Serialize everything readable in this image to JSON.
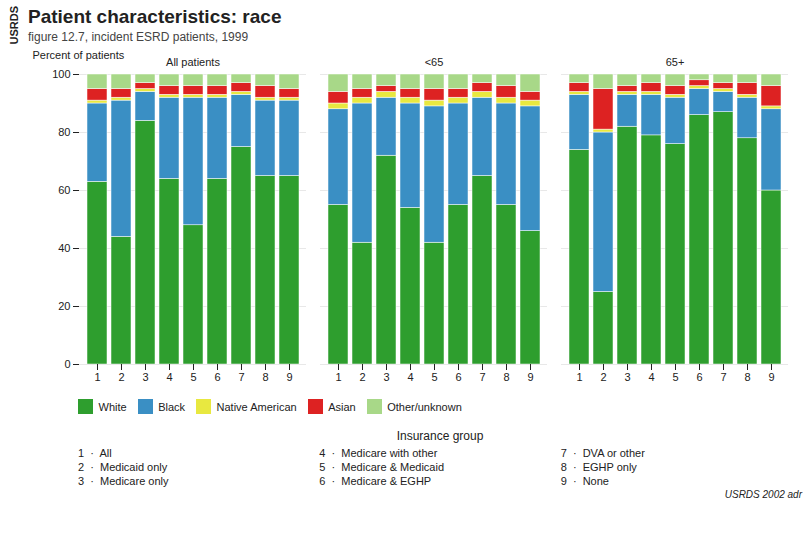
{
  "chart_data": {
    "type": "bar",
    "title": "Patient characteristics: race",
    "subtitle": "figure 12.7, incident ESRD patients, 1999",
    "xlabel": "Insurance group",
    "ylabel": "Percent of patients",
    "stacked": true,
    "grid": true,
    "legend": "bottom",
    "ylim": [
      0,
      100
    ],
    "yticks": [
      0,
      20,
      40,
      60,
      80,
      100
    ],
    "categories": [
      "1",
      "2",
      "3",
      "4",
      "5",
      "6",
      "7",
      "8",
      "9"
    ],
    "facets": [
      {
        "title": "All patients",
        "series": [
          {
            "name": "White",
            "color": "#2e9e2e",
            "values": [
              63,
              44,
              84,
              64,
              48,
              64,
              75,
              65,
              65
            ]
          },
          {
            "name": "Black",
            "color": "#3a8fc4",
            "values": [
              27,
              47,
              10,
              28,
              44,
              28,
              18,
              26,
              26
            ]
          },
          {
            "name": "Native American",
            "color": "#e8e840",
            "values": [
              1,
              1,
              1,
              1,
              1,
              1,
              1,
              1,
              1
            ]
          },
          {
            "name": "Asian",
            "color": "#dd2222",
            "values": [
              4,
              3,
              2,
              3,
              3,
              3,
              3,
              4,
              3
            ]
          },
          {
            "name": "Other/unknown",
            "color": "#a8d888",
            "values": [
              5,
              5,
              3,
              4,
              4,
              4,
              3,
              4,
              5
            ]
          }
        ]
      },
      {
        "title": "<65",
        "series": [
          {
            "name": "White",
            "color": "#2e9e2e",
            "values": [
              55,
              42,
              72,
              54,
              42,
              55,
              65,
              55,
              46
            ]
          },
          {
            "name": "Black",
            "color": "#3a8fc4",
            "values": [
              33,
              48,
              20,
              36,
              47,
              35,
              27,
              35,
              43
            ]
          },
          {
            "name": "Native American",
            "color": "#e8e840",
            "values": [
              2,
              2,
              2,
              2,
              2,
              2,
              2,
              2,
              2
            ]
          },
          {
            "name": "Asian",
            "color": "#dd2222",
            "values": [
              4,
              3,
              2,
              3,
              4,
              3,
              3,
              4,
              3
            ]
          },
          {
            "name": "Other/unknown",
            "color": "#a8d888",
            "values": [
              6,
              5,
              4,
              5,
              5,
              5,
              3,
              4,
              6
            ]
          }
        ]
      },
      {
        "title": "65+",
        "series": [
          {
            "name": "White",
            "color": "#2e9e2e",
            "values": [
              74,
              25,
              82,
              79,
              76,
              86,
              87,
              78,
              60
            ]
          },
          {
            "name": "Black",
            "color": "#3a8fc4",
            "values": [
              19,
              55,
              11,
              14,
              16,
              9,
              7,
              14,
              28
            ]
          },
          {
            "name": "Native American",
            "color": "#e8e840",
            "values": [
              1,
              1,
              1,
              1,
              1,
              1,
              1,
              1,
              1
            ]
          },
          {
            "name": "Asian",
            "color": "#dd2222",
            "values": [
              3,
              14,
              2,
              3,
              3,
              2,
              2,
              4,
              7
            ]
          },
          {
            "name": "Other/unknown",
            "color": "#a8d888",
            "values": [
              3,
              5,
              4,
              3,
              4,
              2,
              3,
              3,
              4
            ]
          }
        ]
      }
    ],
    "annotations": {
      "footnotes": [
        [
          "1  ·  All",
          "4  ·  Medicare with other",
          "7  ·  DVA or other"
        ],
        [
          "2  ·  Medicaid only",
          "5  ·  Medicare & Medicaid",
          "8  ·  EGHP only"
        ],
        [
          "3  ·  Medicare only",
          "6  ·  Medicare & EGHP",
          "9  ·  None"
        ]
      ],
      "watermark": "USRDS 2002 adr",
      "sidebar": "USRDS"
    }
  }
}
